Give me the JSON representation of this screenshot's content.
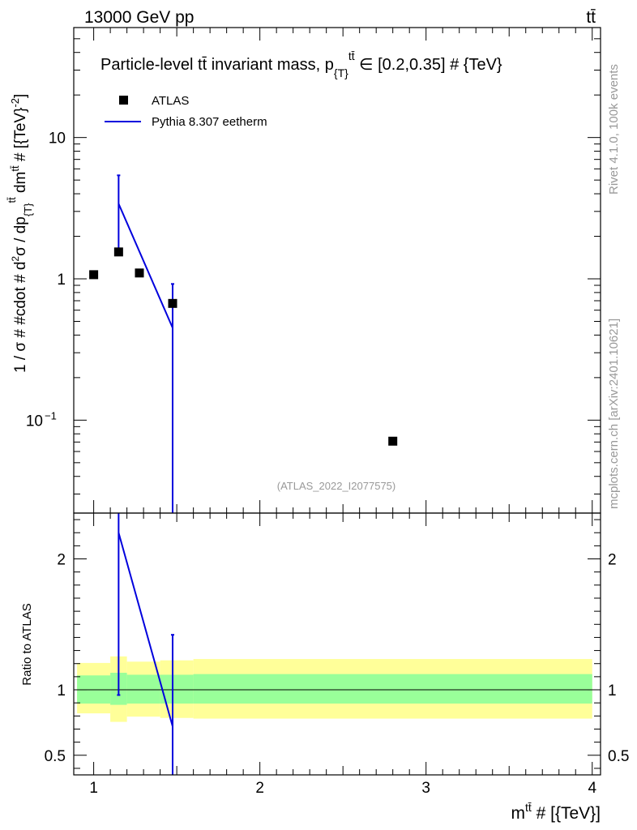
{
  "header": {
    "energy_label": "13000 GeV pp",
    "process_label": "tt̄"
  },
  "side_labels": {
    "rivet": "Rivet 4.1.0,  100k events",
    "site": "mcplots.cern.ch [arXiv:2401.10621]"
  },
  "chart_data": [
    {
      "type": "scatter",
      "title": "Particle-level tt̄ invariant mass, p{T}tt̄ ∈ [0.2,0.35] # {TeV}",
      "title_parts": {
        "lead": "Particle-level ",
        "ttbar": "tt̄",
        "mid": " invariant mass, p",
        "sub": "{T}",
        "sup": "tt̄",
        "tail": " ∈ [0.2,0.35] # {TeV}"
      },
      "ylabel": "1 / σ # #cdot # d²σ / dp{T}tt̄ dmtt̄ # [{TeV}-2]",
      "ylabel_parts": {
        "lead": "1 / σ # #cdot # d",
        "two": "2",
        "mid": "σ / dp",
        "sub": "{T}",
        "sup1": "tt̄",
        "mid2": " dm",
        "sup2": "tt̄",
        "tail": " # [{TeV}",
        "exp": "-2",
        "close": "]"
      },
      "yscale": "log",
      "ylim": [
        0.022,
        60
      ],
      "xlim": [
        0.88,
        4.05
      ],
      "y_ticks": [
        {
          "value": 0.1,
          "label": "10",
          "exp": "−1"
        },
        {
          "value": 1,
          "label": "1",
          "exp": ""
        },
        {
          "value": 10,
          "label": "10",
          "exp": ""
        }
      ],
      "watermark": "(ATLAS_2022_I2077575)",
      "legend": [
        {
          "name": "ATLAS",
          "marker": "square",
          "color": "#000000"
        },
        {
          "name": "Pythia 8.307 eetherm",
          "marker": "line",
          "color": "#0000dd"
        }
      ],
      "series": [
        {
          "name": "ATLAS",
          "color": "#000000",
          "points": [
            {
              "x": 1.0,
              "y": 1.07
            },
            {
              "x": 1.15,
              "y": 1.55
            },
            {
              "x": 1.275,
              "y": 1.1
            },
            {
              "x": 1.475,
              "y": 0.67
            },
            {
              "x": 2.8,
              "y": 0.071
            }
          ]
        },
        {
          "name": "Pythia 8.307 eetherm",
          "color": "#0000dd",
          "points": [
            {
              "x": 1.15,
              "y": 3.4,
              "err_up": 5.4,
              "err_down": 1.45
            },
            {
              "x": 1.475,
              "y": 0.45,
              "err_up": 0.92,
              "err_down": 0.0001
            }
          ]
        }
      ]
    },
    {
      "type": "line",
      "ylabel": "Ratio to ATLAS",
      "xlabel": "mtt̄ # [{TeV}]",
      "xlabel_parts": {
        "lead": "m",
        "sup": "tt̄",
        "tail": " # [{TeV}]"
      },
      "ylim": [
        0.35,
        2.35
      ],
      "xlim": [
        0.88,
        4.05
      ],
      "x_ticks": [
        1,
        2,
        3,
        4
      ],
      "y_ticks": [
        0.5,
        1,
        2
      ],
      "reference": 1,
      "bands": [
        {
          "x0": 0.9,
          "x1": 1.1,
          "inner": [
            0.895,
            1.11
          ],
          "outer": [
            0.82,
            1.205
          ]
        },
        {
          "x0": 1.1,
          "x1": 1.2,
          "inner": [
            0.885,
            1.13
          ],
          "outer": [
            0.755,
            1.255
          ]
        },
        {
          "x0": 1.2,
          "x1": 1.4,
          "inner": [
            0.895,
            1.115
          ],
          "outer": [
            0.795,
            1.215
          ]
        },
        {
          "x0": 1.4,
          "x1": 1.6,
          "inner": [
            0.895,
            1.115
          ],
          "outer": [
            0.785,
            1.225
          ]
        },
        {
          "x0": 1.6,
          "x1": 4.0,
          "inner": [
            0.895,
            1.12
          ],
          "outer": [
            0.78,
            1.235
          ]
        }
      ],
      "series": [
        {
          "name": "Pythia 8.307 eetherm",
          "color": "#0000dd",
          "points": [
            {
              "x": 1.15,
              "y": 2.2,
              "err_up": 2.36,
              "err_down": 0.96
            },
            {
              "x": 1.475,
              "y": 0.72,
              "err_up": 1.42,
              "err_down": 0.34
            }
          ]
        }
      ]
    }
  ]
}
